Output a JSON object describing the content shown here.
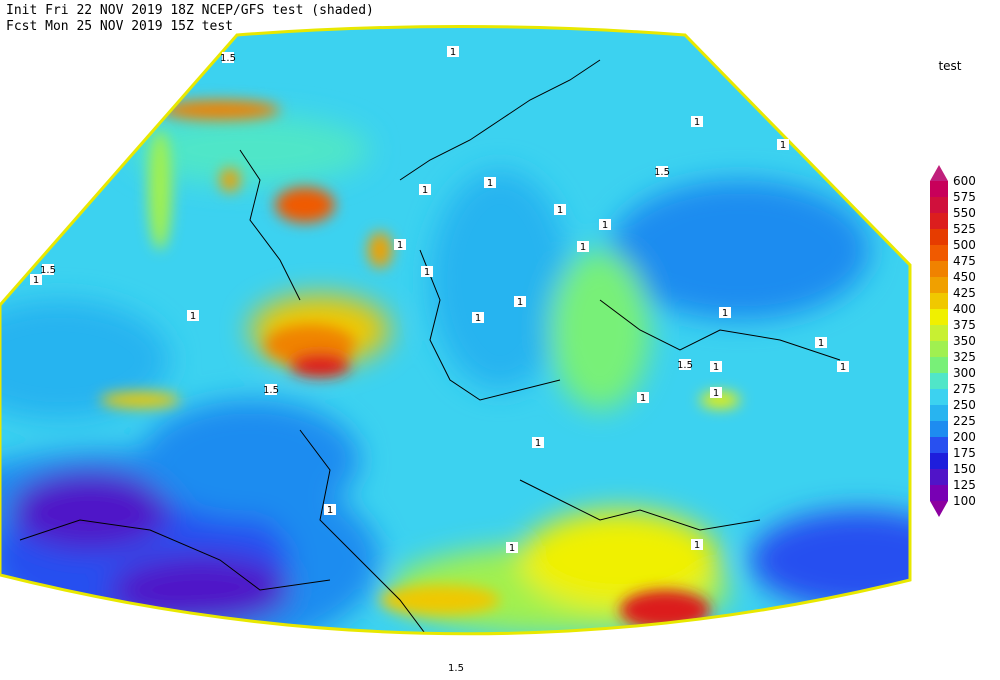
{
  "header": {
    "line1": "Init  Fri 22 NOV 2019 18Z   NCEP/GFS test (shaded)",
    "line2": "Fcst Mon 25 NOV 2019 15Z  test"
  },
  "colorbar": {
    "title": "test",
    "labels": [
      600,
      575,
      550,
      525,
      500,
      475,
      450,
      425,
      400,
      375,
      350,
      325,
      300,
      275,
      250,
      225,
      200,
      175,
      150,
      125,
      100
    ],
    "colors": [
      "#c0207c",
      "#c8005a",
      "#d0103c",
      "#dc1e1e",
      "#e63c00",
      "#f05a00",
      "#f08200",
      "#f0a000",
      "#f0c800",
      "#f0f000",
      "#c8f032",
      "#a0f050",
      "#78f078",
      "#50e6c8",
      "#3cd2f0",
      "#28b4f0",
      "#1e8cf0",
      "#2850f0",
      "#1e1edc",
      "#5014c8",
      "#7800b4",
      "#8c00a0"
    ]
  },
  "contour_labels": [
    "1",
    "1",
    "1",
    "1.5",
    "1",
    "1",
    "1",
    "1",
    "1",
    "1",
    "1",
    "1",
    "1",
    "1.5",
    "1",
    "1",
    "1",
    "1",
    "1.5",
    "1",
    "1",
    "1",
    "1",
    "1.5",
    "1",
    "1",
    "1",
    "1",
    "1.5",
    "1.5"
  ]
}
